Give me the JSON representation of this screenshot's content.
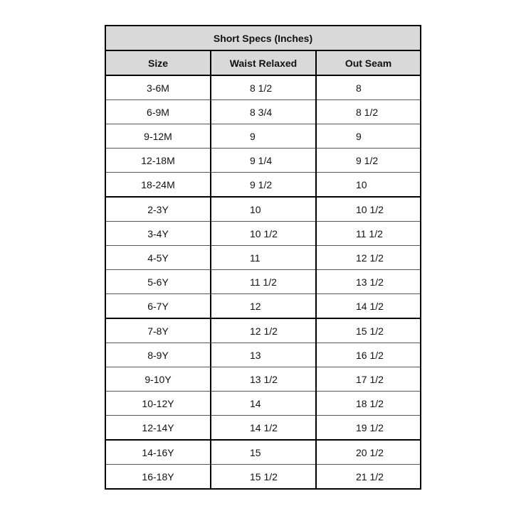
{
  "title": "Short Specs (Inches)",
  "headers": [
    "Size",
    "Waist Relaxed",
    "Out Seam"
  ],
  "rows": [
    [
      "3-6M",
      "8 1/2",
      "8"
    ],
    [
      "6-9M",
      "8 3/4",
      "8 1/2"
    ],
    [
      "9-12M",
      "9",
      "9"
    ],
    [
      "12-18M",
      "9 1/4",
      "9 1/2"
    ],
    [
      "18-24M",
      "9 1/2",
      "10"
    ],
    [
      "2-3Y",
      "10",
      "10 1/2"
    ],
    [
      "3-4Y",
      "10 1/2",
      "11 1/2"
    ],
    [
      "4-5Y",
      "11",
      "12 1/2"
    ],
    [
      "5-6Y",
      "11 1/2",
      "13 1/2"
    ],
    [
      "6-7Y",
      "12",
      "14 1/2"
    ],
    [
      "7-8Y",
      "12 1/2",
      "15 1/2"
    ],
    [
      "8-9Y",
      "13",
      "16 1/2"
    ],
    [
      "9-10Y",
      "13 1/2",
      "17 1/2"
    ],
    [
      "10-12Y",
      "14",
      "18 1/2"
    ],
    [
      "12-14Y",
      "14 1/2",
      "19 1/2"
    ],
    [
      "14-16Y",
      "15",
      "20 1/2"
    ],
    [
      "16-18Y",
      "15 1/2",
      "21 1/2"
    ]
  ],
  "colors": {
    "header_bg": "#d9d9d9",
    "border": "#000000"
  }
}
